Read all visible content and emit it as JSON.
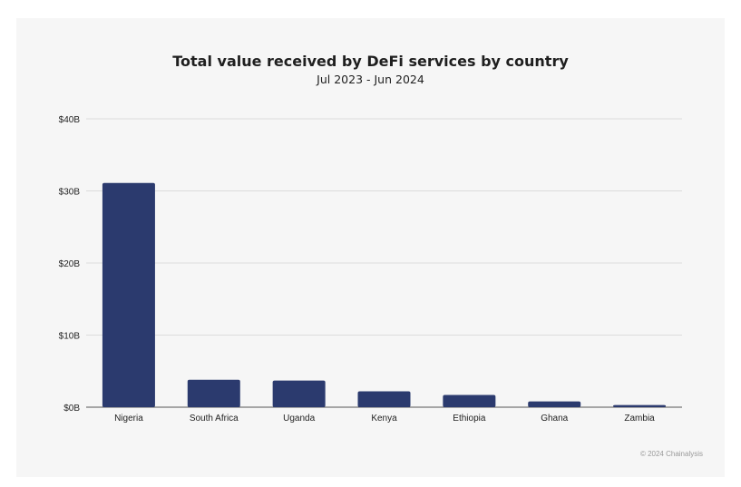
{
  "chart_data": {
    "type": "bar",
    "title": "Total value received by DeFi services by country",
    "subtitle": "Jul 2023 - Jun 2024",
    "xlabel": "",
    "ylabel": "",
    "categories": [
      "Nigeria",
      "South Africa",
      "Uganda",
      "Kenya",
      "Ethiopia",
      "Ghana",
      "Zambia"
    ],
    "values": [
      31.1,
      3.8,
      3.7,
      2.2,
      1.7,
      0.8,
      0.3
    ],
    "unit": "billion USD",
    "ylim": [
      0,
      40
    ],
    "yticks": [
      0,
      10,
      20,
      30,
      40
    ],
    "ytick_labels": [
      "$0B",
      "$10B",
      "$20B",
      "$30B",
      "$40B"
    ],
    "grid": true,
    "bar_color": "#2b3a6e",
    "grid_color": "#dcdcdc"
  },
  "credit": "© 2024 Chainalysis"
}
